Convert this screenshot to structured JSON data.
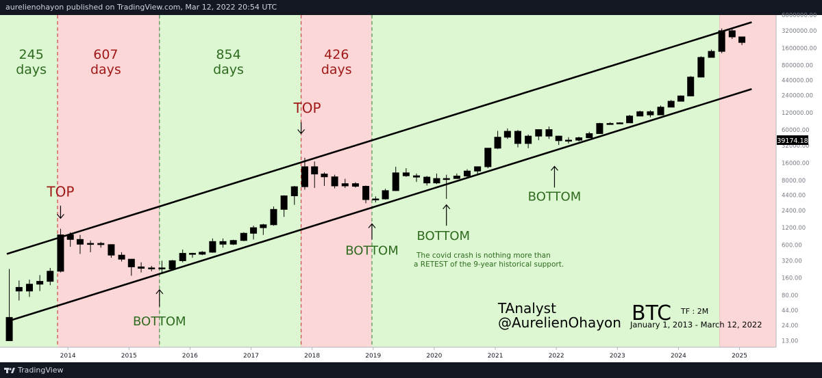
{
  "header": {
    "published_text": "aurelienohayon published on TradingView.com, Mar 12, 2022 20:54 UTC"
  },
  "footer": {
    "brand": "TradingView"
  },
  "colors": {
    "green_zone": "#dcf7d2",
    "red_zone": "#fcd7d7",
    "price_box": "#000000",
    "channel": "#000000"
  },
  "chart_data": {
    "type": "candlestick",
    "title": "BTC",
    "timeframe_label": "TF : 2M",
    "date_range_label": "January 1, 2013 - March 12, 2022",
    "author_name": "TAnalyst",
    "author_handle": "@AurelienOhayon",
    "y_scale": "log",
    "ylim": [
      10,
      6000000
    ],
    "xlim": [
      2013.0,
      2025.6
    ],
    "current_price_label": "39174.18",
    "y_ticks": [
      {
        "value": 6000000,
        "label": "6000000.00"
      },
      {
        "value": 3200000,
        "label": "3200000.00"
      },
      {
        "value": 1600000,
        "label": "1600000.00"
      },
      {
        "value": 800000,
        "label": "800000.00"
      },
      {
        "value": 440000,
        "label": "440000.00"
      },
      {
        "value": 240000,
        "label": "240000.00"
      },
      {
        "value": 120000,
        "label": "120000.00"
      },
      {
        "value": 60000,
        "label": "60000.00"
      },
      {
        "value": 32000,
        "label": "32000.00"
      },
      {
        "value": 16000,
        "label": "16000.00"
      },
      {
        "value": 8000,
        "label": "8000.00"
      },
      {
        "value": 4400,
        "label": "4400.00"
      },
      {
        "value": 2400,
        "label": "2400.00"
      },
      {
        "value": 1200,
        "label": "1200.00"
      },
      {
        "value": 600,
        "label": "600.00"
      },
      {
        "value": 320,
        "label": "320.00"
      },
      {
        "value": 160,
        "label": "160.00"
      },
      {
        "value": 80,
        "label": "80.00"
      },
      {
        "value": 44,
        "label": "44.00"
      },
      {
        "value": 24,
        "label": "24.00"
      },
      {
        "value": 13,
        "label": "13.00"
      }
    ],
    "x_ticks": [
      {
        "value": 2014.0,
        "label": "2014"
      },
      {
        "value": 2015.0,
        "label": "2015"
      },
      {
        "value": 2016.0,
        "label": "2016"
      },
      {
        "value": 2017.0,
        "label": "2017"
      },
      {
        "value": 2018.0,
        "label": "2018"
      },
      {
        "value": 2019.0,
        "label": "2019"
      },
      {
        "value": 2020.0,
        "label": "2020"
      },
      {
        "value": 2021.0,
        "label": "2021"
      },
      {
        "value": 2022.0,
        "label": "2022"
      },
      {
        "value": 2023.0,
        "label": "2023"
      },
      {
        "value": 2024.0,
        "label": "2024"
      },
      {
        "value": 2025.0,
        "label": "2025"
      }
    ],
    "zones": [
      {
        "from": 2013.0,
        "to": 2013.83,
        "color": "green"
      },
      {
        "from": 2013.83,
        "to": 2015.5,
        "color": "red"
      },
      {
        "from": 2015.5,
        "to": 2017.82,
        "color": "green"
      },
      {
        "from": 2017.82,
        "to": 2018.98,
        "color": "red"
      },
      {
        "from": 2018.98,
        "to": 2024.67,
        "color": "green"
      },
      {
        "from": 2024.67,
        "to": 2025.6,
        "color": "red"
      }
    ],
    "cycle_dividers": [
      {
        "x": 2013.83,
        "color": "red"
      },
      {
        "x": 2015.5,
        "color": "green"
      },
      {
        "x": 2017.82,
        "color": "red"
      },
      {
        "x": 2018.98,
        "color": "green"
      }
    ],
    "cycle_labels": [
      {
        "x": 2013.4,
        "number": "245",
        "unit": "days",
        "color": "green"
      },
      {
        "x": 2014.62,
        "number": "607",
        "unit": "days",
        "color": "red"
      },
      {
        "x": 2016.63,
        "number": "854",
        "unit": "days",
        "color": "green"
      },
      {
        "x": 2018.4,
        "number": "426",
        "unit": "days",
        "color": "red"
      }
    ],
    "channel_lines": [
      {
        "name": "upper",
        "from": [
          2013.0,
          420
        ],
        "to": [
          2025.2,
          4500000
        ]
      },
      {
        "name": "lower",
        "from": [
          2013.0,
          28
        ],
        "to": [
          2025.2,
          310000
        ]
      }
    ],
    "candles": [
      {
        "x": 2013.04,
        "o": 13,
        "h": 230,
        "l": 13,
        "c": 33,
        "filled": true
      },
      {
        "x": 2013.2,
        "o": 110,
        "h": 145,
        "l": 65,
        "c": 95,
        "filled": false
      },
      {
        "x": 2013.37,
        "o": 95,
        "h": 150,
        "l": 75,
        "c": 125,
        "filled": false
      },
      {
        "x": 2013.54,
        "o": 125,
        "h": 180,
        "l": 95,
        "c": 140,
        "filled": false
      },
      {
        "x": 2013.71,
        "o": 140,
        "h": 240,
        "l": 120,
        "c": 210,
        "filled": false
      },
      {
        "x": 2013.88,
        "o": 210,
        "h": 1150,
        "l": 200,
        "c": 900,
        "filled": false
      },
      {
        "x": 2014.04,
        "o": 900,
        "h": 1000,
        "l": 560,
        "c": 750,
        "filled": true
      },
      {
        "x": 2014.2,
        "o": 750,
        "h": 900,
        "l": 420,
        "c": 620,
        "filled": true
      },
      {
        "x": 2014.37,
        "o": 620,
        "h": 720,
        "l": 450,
        "c": 640,
        "filled": false
      },
      {
        "x": 2014.54,
        "o": 640,
        "h": 680,
        "l": 540,
        "c": 610,
        "filled": true
      },
      {
        "x": 2014.71,
        "o": 610,
        "h": 620,
        "l": 360,
        "c": 400,
        "filled": true
      },
      {
        "x": 2014.88,
        "o": 400,
        "h": 450,
        "l": 310,
        "c": 340,
        "filled": true
      },
      {
        "x": 2015.04,
        "o": 340,
        "h": 340,
        "l": 175,
        "c": 250,
        "filled": true
      },
      {
        "x": 2015.2,
        "o": 250,
        "h": 300,
        "l": 200,
        "c": 236,
        "filled": true
      },
      {
        "x": 2015.37,
        "o": 236,
        "h": 260,
        "l": 210,
        "c": 240,
        "filled": false
      },
      {
        "x": 2015.54,
        "o": 240,
        "h": 320,
        "l": 190,
        "c": 230,
        "filled": true
      },
      {
        "x": 2015.71,
        "o": 230,
        "h": 330,
        "l": 220,
        "c": 320,
        "filled": false
      },
      {
        "x": 2015.88,
        "o": 320,
        "h": 500,
        "l": 300,
        "c": 430,
        "filled": false
      },
      {
        "x": 2016.04,
        "o": 430,
        "h": 440,
        "l": 360,
        "c": 415,
        "filled": false
      },
      {
        "x": 2016.2,
        "o": 415,
        "h": 470,
        "l": 400,
        "c": 450,
        "filled": false
      },
      {
        "x": 2016.37,
        "o": 450,
        "h": 780,
        "l": 440,
        "c": 690,
        "filled": false
      },
      {
        "x": 2016.54,
        "o": 690,
        "h": 780,
        "l": 540,
        "c": 620,
        "filled": true
      },
      {
        "x": 2016.71,
        "o": 620,
        "h": 740,
        "l": 600,
        "c": 720,
        "filled": false
      },
      {
        "x": 2016.88,
        "o": 720,
        "h": 1000,
        "l": 700,
        "c": 960,
        "filled": false
      },
      {
        "x": 2017.04,
        "o": 960,
        "h": 1300,
        "l": 750,
        "c": 1200,
        "filled": false
      },
      {
        "x": 2017.2,
        "o": 1200,
        "h": 1400,
        "l": 900,
        "c": 1350,
        "filled": false
      },
      {
        "x": 2017.37,
        "o": 1350,
        "h": 2800,
        "l": 1300,
        "c": 2500,
        "filled": false
      },
      {
        "x": 2017.54,
        "o": 2500,
        "h": 4400,
        "l": 1850,
        "c": 4300,
        "filled": false
      },
      {
        "x": 2017.71,
        "o": 4300,
        "h": 6400,
        "l": 3000,
        "c": 6200,
        "filled": false
      },
      {
        "x": 2017.88,
        "o": 6200,
        "h": 19700,
        "l": 5500,
        "c": 13800,
        "filled": false
      },
      {
        "x": 2018.04,
        "o": 13800,
        "h": 17000,
        "l": 5900,
        "c": 10300,
        "filled": true
      },
      {
        "x": 2018.2,
        "o": 10300,
        "h": 11000,
        "l": 6400,
        "c": 9200,
        "filled": true
      },
      {
        "x": 2018.37,
        "o": 9200,
        "h": 10000,
        "l": 5800,
        "c": 6400,
        "filled": true
      },
      {
        "x": 2018.54,
        "o": 6400,
        "h": 8500,
        "l": 5900,
        "c": 7000,
        "filled": false
      },
      {
        "x": 2018.71,
        "o": 7000,
        "h": 7400,
        "l": 6000,
        "c": 6300,
        "filled": true
      },
      {
        "x": 2018.88,
        "o": 6300,
        "h": 6500,
        "l": 3200,
        "c": 3700,
        "filled": true
      },
      {
        "x": 2019.04,
        "o": 3700,
        "h": 4200,
        "l": 3300,
        "c": 3800,
        "filled": false
      },
      {
        "x": 2019.2,
        "o": 3800,
        "h": 5700,
        "l": 3700,
        "c": 5300,
        "filled": false
      },
      {
        "x": 2019.37,
        "o": 5300,
        "h": 13800,
        "l": 5200,
        "c": 10800,
        "filled": false
      },
      {
        "x": 2019.54,
        "o": 10800,
        "h": 13000,
        "l": 9200,
        "c": 9600,
        "filled": true
      },
      {
        "x": 2019.71,
        "o": 9600,
        "h": 10500,
        "l": 7500,
        "c": 9100,
        "filled": true
      },
      {
        "x": 2019.88,
        "o": 9100,
        "h": 9500,
        "l": 6500,
        "c": 7200,
        "filled": true
      },
      {
        "x": 2020.04,
        "o": 7200,
        "h": 10500,
        "l": 6900,
        "c": 8600,
        "filled": false
      },
      {
        "x": 2020.2,
        "o": 8600,
        "h": 10000,
        "l": 3800,
        "c": 8600,
        "filled": false
      },
      {
        "x": 2020.37,
        "o": 8600,
        "h": 10500,
        "l": 8600,
        "c": 9500,
        "filled": false
      },
      {
        "x": 2020.54,
        "o": 9500,
        "h": 12500,
        "l": 9000,
        "c": 11600,
        "filled": false
      },
      {
        "x": 2020.71,
        "o": 11600,
        "h": 13900,
        "l": 10200,
        "c": 13800,
        "filled": false
      },
      {
        "x": 2020.88,
        "o": 13800,
        "h": 29000,
        "l": 13000,
        "c": 29000,
        "filled": false
      },
      {
        "x": 2021.04,
        "o": 29000,
        "h": 58000,
        "l": 28000,
        "c": 45000,
        "filled": false
      },
      {
        "x": 2021.2,
        "o": 45000,
        "h": 64000,
        "l": 42000,
        "c": 57000,
        "filled": false
      },
      {
        "x": 2021.37,
        "o": 57000,
        "h": 60000,
        "l": 30000,
        "c": 35000,
        "filled": true
      },
      {
        "x": 2021.54,
        "o": 35000,
        "h": 50000,
        "l": 29000,
        "c": 47000,
        "filled": false
      },
      {
        "x": 2021.71,
        "o": 47000,
        "h": 61000,
        "l": 40000,
        "c": 61000,
        "filled": false
      },
      {
        "x": 2021.88,
        "o": 61000,
        "h": 69000,
        "l": 42000,
        "c": 47000,
        "filled": true
      },
      {
        "x": 2022.04,
        "o": 47000,
        "h": 48000,
        "l": 33000,
        "c": 39174,
        "filled": true
      },
      {
        "x": 2022.2,
        "o": 39174,
        "h": 45000,
        "l": 35000,
        "c": 40000,
        "filled": false
      },
      {
        "x": 2022.37,
        "o": 40000,
        "h": 46000,
        "l": 38000,
        "c": 44000,
        "filled": false
      },
      {
        "x": 2022.54,
        "o": 44000,
        "h": 56000,
        "l": 44000,
        "c": 52000,
        "filled": false
      },
      {
        "x": 2022.71,
        "o": 52000,
        "h": 80000,
        "l": 52000,
        "c": 78000,
        "filled": false
      },
      {
        "x": 2022.88,
        "o": 78000,
        "h": 82000,
        "l": 76000,
        "c": 78000,
        "filled": false
      },
      {
        "x": 2023.04,
        "o": 78000,
        "h": 82000,
        "l": 78000,
        "c": 80000,
        "filled": false
      },
      {
        "x": 2023.2,
        "o": 80000,
        "h": 110000,
        "l": 80000,
        "c": 105000,
        "filled": false
      },
      {
        "x": 2023.37,
        "o": 105000,
        "h": 130000,
        "l": 105000,
        "c": 125000,
        "filled": false
      },
      {
        "x": 2023.54,
        "o": 125000,
        "h": 132000,
        "l": 100000,
        "c": 110000,
        "filled": true
      },
      {
        "x": 2023.71,
        "o": 110000,
        "h": 160000,
        "l": 110000,
        "c": 150000,
        "filled": false
      },
      {
        "x": 2023.88,
        "o": 150000,
        "h": 200000,
        "l": 150000,
        "c": 190000,
        "filled": false
      },
      {
        "x": 2024.04,
        "o": 190000,
        "h": 240000,
        "l": 190000,
        "c": 235000,
        "filled": false
      },
      {
        "x": 2024.2,
        "o": 235000,
        "h": 520000,
        "l": 235000,
        "c": 500000,
        "filled": false
      },
      {
        "x": 2024.37,
        "o": 500000,
        "h": 1150000,
        "l": 500000,
        "c": 1100000,
        "filled": false
      },
      {
        "x": 2024.54,
        "o": 1100000,
        "h": 1500000,
        "l": 1100000,
        "c": 1400000,
        "filled": false
      },
      {
        "x": 2024.71,
        "o": 1400000,
        "h": 3500000,
        "l": 1300000,
        "c": 3200000,
        "filled": false
      },
      {
        "x": 2024.88,
        "o": 3200000,
        "h": 3500000,
        "l": 2300000,
        "c": 2500000,
        "filled": true
      },
      {
        "x": 2025.04,
        "o": 2500000,
        "h": 2500000,
        "l": 1800000,
        "c": 2000000,
        "filled": true
      }
    ],
    "annotations": [
      {
        "text": "TOP",
        "x": 2013.88,
        "y": 4200,
        "color": "red",
        "size": 20
      },
      {
        "text": "TOP",
        "x": 2017.92,
        "y": 120000,
        "color": "red",
        "size": 20
      },
      {
        "text": "BOTTOM",
        "x": 2015.5,
        "y": 24,
        "color": "green",
        "size": 18
      },
      {
        "text": "BOTTOM",
        "x": 2018.98,
        "y": 410,
        "color": "green",
        "size": 18
      },
      {
        "text": "BOTTOM",
        "x": 2020.15,
        "y": 740,
        "color": "green",
        "size": 18
      },
      {
        "text": "BOTTOM",
        "x": 2021.97,
        "y": 3550,
        "color": "green",
        "size": 18
      }
    ],
    "note_lines": [
      "The covid crash is nothing more than",
      "a RETEST of the 9-year historical support."
    ],
    "arrows": [
      {
        "x": 2013.88,
        "from": 2900,
        "to": 1750,
        "dir": "down"
      },
      {
        "x": 2017.82,
        "from": 82000,
        "to": 52000,
        "dir": "down"
      },
      {
        "x": 2015.5,
        "from": 51,
        "to": 100,
        "dir": "up"
      },
      {
        "x": 2018.98,
        "from": 750,
        "to": 1400,
        "dir": "up"
      },
      {
        "x": 2020.2,
        "from": 1300,
        "to": 3000,
        "dir": "up"
      },
      {
        "x": 2021.97,
        "from": 6000,
        "to": 14000,
        "dir": "up"
      }
    ]
  }
}
